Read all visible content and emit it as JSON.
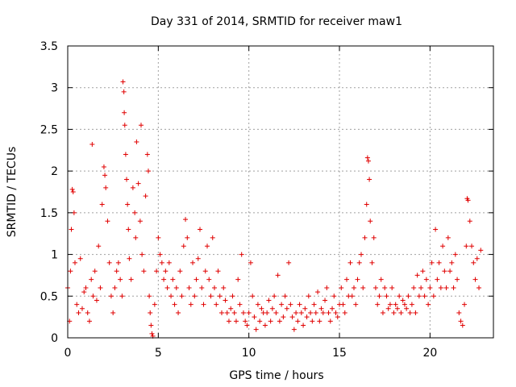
{
  "chart_data": {
    "type": "scatter",
    "title": "Day 331 of 2014, SRMTID for receiver maw1",
    "xlabel": "GPS time / hours",
    "ylabel": "SRMTID / TECUs",
    "xlim": [
      0,
      23.5
    ],
    "ylim": [
      0,
      3.5
    ],
    "grid": true,
    "marker": "plus",
    "color": "#e00000",
    "x_ticks": [
      {
        "value": 0,
        "label": "0"
      },
      {
        "value": 5,
        "label": "5"
      },
      {
        "value": 10,
        "label": "10"
      },
      {
        "value": 15,
        "label": "15"
      },
      {
        "value": 20,
        "label": "20"
      }
    ],
    "y_ticks": [
      {
        "value": 0,
        "label": "0"
      },
      {
        "value": 0.5,
        "label": "0.5"
      },
      {
        "value": 1,
        "label": "1"
      },
      {
        "value": 1.5,
        "label": "1.5"
      },
      {
        "value": 2,
        "label": "2"
      },
      {
        "value": 2.5,
        "label": "2.5"
      },
      {
        "value": 3,
        "label": "3"
      },
      {
        "value": 3.5,
        "label": "3.5"
      }
    ],
    "series": [
      {
        "name": "maw1",
        "points": [
          [
            0.0,
            0.6
          ],
          [
            0.1,
            0.2
          ],
          [
            0.15,
            0.8
          ],
          [
            0.2,
            1.3
          ],
          [
            0.25,
            1.78
          ],
          [
            0.3,
            1.75
          ],
          [
            0.35,
            1.5
          ],
          [
            0.4,
            0.9
          ],
          [
            0.5,
            0.4
          ],
          [
            0.6,
            0.3
          ],
          [
            0.7,
            0.95
          ],
          [
            0.8,
            0.35
          ],
          [
            0.9,
            0.55
          ],
          [
            1.0,
            0.6
          ],
          [
            1.1,
            0.3
          ],
          [
            1.2,
            0.2
          ],
          [
            1.3,
            0.7
          ],
          [
            1.35,
            2.32
          ],
          [
            1.4,
            0.5
          ],
          [
            1.5,
            0.8
          ],
          [
            1.6,
            0.45
          ],
          [
            1.7,
            1.1
          ],
          [
            1.8,
            0.6
          ],
          [
            1.9,
            1.6
          ],
          [
            2.0,
            2.05
          ],
          [
            2.05,
            1.95
          ],
          [
            2.1,
            1.8
          ],
          [
            2.2,
            1.4
          ],
          [
            2.3,
            0.9
          ],
          [
            2.4,
            0.5
          ],
          [
            2.5,
            0.3
          ],
          [
            2.6,
            0.6
          ],
          [
            2.7,
            0.8
          ],
          [
            2.8,
            0.9
          ],
          [
            2.9,
            0.7
          ],
          [
            3.0,
            0.5
          ],
          [
            3.05,
            3.07
          ],
          [
            3.1,
            2.95
          ],
          [
            3.12,
            2.7
          ],
          [
            3.15,
            2.55
          ],
          [
            3.2,
            2.2
          ],
          [
            3.25,
            1.9
          ],
          [
            3.3,
            1.6
          ],
          [
            3.35,
            1.3
          ],
          [
            3.4,
            0.95
          ],
          [
            3.5,
            0.7
          ],
          [
            3.6,
            1.8
          ],
          [
            3.7,
            1.5
          ],
          [
            3.75,
            1.2
          ],
          [
            3.8,
            2.35
          ],
          [
            3.9,
            1.85
          ],
          [
            4.0,
            1.4
          ],
          [
            4.05,
            2.55
          ],
          [
            4.1,
            1.0
          ],
          [
            4.2,
            0.8
          ],
          [
            4.3,
            1.7
          ],
          [
            4.4,
            2.2
          ],
          [
            4.45,
            2.0
          ],
          [
            4.5,
            0.5
          ],
          [
            4.55,
            0.3
          ],
          [
            4.6,
            0.15
          ],
          [
            4.65,
            0.05
          ],
          [
            4.7,
            0.02
          ],
          [
            4.8,
            0.4
          ],
          [
            4.9,
            0.8
          ],
          [
            5.0,
            1.2
          ],
          [
            5.1,
            1.0
          ],
          [
            5.2,
            0.9
          ],
          [
            5.3,
            0.7
          ],
          [
            5.4,
            0.8
          ],
          [
            5.5,
            0.6
          ],
          [
            5.6,
            0.9
          ],
          [
            5.7,
            0.5
          ],
          [
            5.8,
            0.7
          ],
          [
            5.9,
            0.4
          ],
          [
            6.0,
            0.6
          ],
          [
            6.1,
            0.3
          ],
          [
            6.2,
            0.8
          ],
          [
            6.3,
            0.5
          ],
          [
            6.4,
            1.1
          ],
          [
            6.5,
            1.42
          ],
          [
            6.6,
            1.2
          ],
          [
            6.7,
            0.6
          ],
          [
            6.8,
            0.4
          ],
          [
            6.9,
            0.9
          ],
          [
            7.0,
            0.5
          ],
          [
            7.1,
            0.7
          ],
          [
            7.2,
            0.95
          ],
          [
            7.3,
            1.3
          ],
          [
            7.4,
            0.6
          ],
          [
            7.5,
            0.4
          ],
          [
            7.6,
            0.8
          ],
          [
            7.7,
            1.1
          ],
          [
            7.8,
            0.7
          ],
          [
            7.9,
            0.5
          ],
          [
            8.0,
            1.2
          ],
          [
            8.1,
            0.6
          ],
          [
            8.2,
            0.4
          ],
          [
            8.3,
            0.8
          ],
          [
            8.4,
            0.5
          ],
          [
            8.5,
            0.3
          ],
          [
            8.6,
            0.6
          ],
          [
            8.7,
            0.45
          ],
          [
            8.8,
            0.3
          ],
          [
            8.9,
            0.2
          ],
          [
            9.0,
            0.35
          ],
          [
            9.1,
            0.5
          ],
          [
            9.2,
            0.3
          ],
          [
            9.3,
            0.2
          ],
          [
            9.4,
            0.7
          ],
          [
            9.5,
            0.4
          ],
          [
            9.6,
            1.0
          ],
          [
            9.7,
            0.3
          ],
          [
            9.8,
            0.2
          ],
          [
            9.9,
            0.15
          ],
          [
            10.0,
            0.3
          ],
          [
            10.1,
            0.9
          ],
          [
            10.2,
            0.5
          ],
          [
            10.3,
            0.25
          ],
          [
            10.4,
            0.1
          ],
          [
            10.5,
            0.4
          ],
          [
            10.6,
            0.2
          ],
          [
            10.7,
            0.35
          ],
          [
            10.8,
            0.3
          ],
          [
            10.9,
            0.15
          ],
          [
            11.0,
            0.3
          ],
          [
            11.1,
            0.45
          ],
          [
            11.2,
            0.2
          ],
          [
            11.3,
            0.35
          ],
          [
            11.4,
            0.5
          ],
          [
            11.5,
            0.3
          ],
          [
            11.6,
            0.75
          ],
          [
            11.7,
            0.2
          ],
          [
            11.8,
            0.4
          ],
          [
            11.9,
            0.25
          ],
          [
            12.0,
            0.5
          ],
          [
            12.1,
            0.35
          ],
          [
            12.2,
            0.9
          ],
          [
            12.3,
            0.4
          ],
          [
            12.4,
            0.25
          ],
          [
            12.5,
            0.1
          ],
          [
            12.6,
            0.3
          ],
          [
            12.7,
            0.2
          ],
          [
            12.8,
            0.4
          ],
          [
            12.9,
            0.3
          ],
          [
            13.0,
            0.15
          ],
          [
            13.1,
            0.35
          ],
          [
            13.2,
            0.25
          ],
          [
            13.3,
            0.5
          ],
          [
            13.4,
            0.3
          ],
          [
            13.5,
            0.2
          ],
          [
            13.6,
            0.4
          ],
          [
            13.7,
            0.3
          ],
          [
            13.8,
            0.55
          ],
          [
            13.9,
            0.2
          ],
          [
            14.0,
            0.35
          ],
          [
            14.1,
            0.3
          ],
          [
            14.2,
            0.45
          ],
          [
            14.3,
            0.6
          ],
          [
            14.4,
            0.3
          ],
          [
            14.5,
            0.2
          ],
          [
            14.6,
            0.35
          ],
          [
            14.7,
            0.5
          ],
          [
            14.8,
            0.3
          ],
          [
            14.9,
            0.25
          ],
          [
            15.0,
            0.4
          ],
          [
            15.1,
            0.6
          ],
          [
            15.2,
            0.4
          ],
          [
            15.3,
            0.3
          ],
          [
            15.4,
            0.7
          ],
          [
            15.5,
            0.5
          ],
          [
            15.6,
            0.9
          ],
          [
            15.7,
            0.5
          ],
          [
            15.8,
            0.6
          ],
          [
            15.9,
            0.4
          ],
          [
            16.0,
            0.7
          ],
          [
            16.1,
            0.9
          ],
          [
            16.2,
            1.0
          ],
          [
            16.3,
            0.6
          ],
          [
            16.4,
            1.2
          ],
          [
            16.5,
            1.6
          ],
          [
            16.55,
            2.16
          ],
          [
            16.6,
            2.12
          ],
          [
            16.65,
            1.9
          ],
          [
            16.7,
            1.4
          ],
          [
            16.8,
            0.9
          ],
          [
            16.9,
            1.2
          ],
          [
            17.0,
            0.6
          ],
          [
            17.1,
            0.4
          ],
          [
            17.2,
            0.5
          ],
          [
            17.3,
            0.7
          ],
          [
            17.4,
            0.3
          ],
          [
            17.5,
            0.6
          ],
          [
            17.6,
            0.5
          ],
          [
            17.7,
            0.35
          ],
          [
            17.8,
            0.4
          ],
          [
            17.9,
            0.6
          ],
          [
            18.0,
            0.3
          ],
          [
            18.1,
            0.4
          ],
          [
            18.2,
            0.35
          ],
          [
            18.3,
            0.5
          ],
          [
            18.4,
            0.3
          ],
          [
            18.5,
            0.45
          ],
          [
            18.6,
            0.4
          ],
          [
            18.7,
            0.35
          ],
          [
            18.8,
            0.5
          ],
          [
            18.9,
            0.3
          ],
          [
            19.0,
            0.4
          ],
          [
            19.1,
            0.6
          ],
          [
            19.2,
            0.3
          ],
          [
            19.3,
            0.75
          ],
          [
            19.4,
            0.5
          ],
          [
            19.5,
            0.6
          ],
          [
            19.6,
            0.8
          ],
          [
            19.7,
            0.5
          ],
          [
            19.8,
            0.7
          ],
          [
            19.9,
            0.4
          ],
          [
            20.0,
            0.6
          ],
          [
            20.1,
            0.9
          ],
          [
            20.2,
            0.5
          ],
          [
            20.3,
            1.3
          ],
          [
            20.4,
            0.7
          ],
          [
            20.5,
            0.9
          ],
          [
            20.6,
            0.6
          ],
          [
            20.7,
            1.1
          ],
          [
            20.8,
            0.8
          ],
          [
            20.9,
            0.6
          ],
          [
            21.0,
            1.2
          ],
          [
            21.1,
            0.8
          ],
          [
            21.2,
            0.9
          ],
          [
            21.3,
            0.6
          ],
          [
            21.4,
            1.0
          ],
          [
            21.5,
            0.7
          ],
          [
            21.6,
            0.3
          ],
          [
            21.7,
            0.2
          ],
          [
            21.8,
            0.15
          ],
          [
            21.9,
            0.4
          ],
          [
            22.0,
            1.1
          ],
          [
            22.05,
            1.67
          ],
          [
            22.1,
            1.65
          ],
          [
            22.2,
            1.4
          ],
          [
            22.3,
            1.1
          ],
          [
            22.4,
            0.9
          ],
          [
            22.5,
            0.7
          ],
          [
            22.6,
            0.95
          ],
          [
            22.7,
            0.6
          ],
          [
            22.8,
            1.05
          ]
        ]
      }
    ]
  }
}
